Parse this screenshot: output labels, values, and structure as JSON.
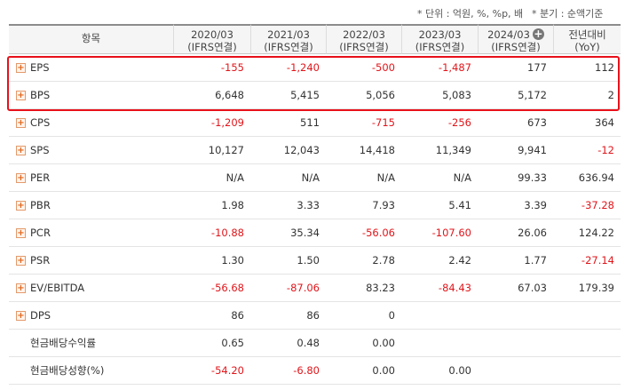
{
  "notes": [
    "* 단위 : 억원, %, %p, 배",
    "* 분기 : 순액기준"
  ],
  "table": {
    "corner": "항목",
    "columns": [
      {
        "period": "2020/03",
        "basis": "(IFRS연결)"
      },
      {
        "period": "2021/03",
        "basis": "(IFRS연결)"
      },
      {
        "period": "2022/03",
        "basis": "(IFRS연결)"
      },
      {
        "period": "2023/03",
        "basis": "(IFRS연결)"
      },
      {
        "period": "2024/03",
        "basis": "(IFRS연결)",
        "expandable": true
      },
      {
        "period": "전년대비",
        "basis": "(YoY)"
      }
    ],
    "rows": [
      {
        "label": "EPS",
        "expandable": true,
        "cells": [
          "-155",
          "-1,240",
          "-500",
          "-1,487",
          "177",
          "112"
        ]
      },
      {
        "label": "BPS",
        "expandable": true,
        "cells": [
          "6,648",
          "5,415",
          "5,056",
          "5,083",
          "5,172",
          "2"
        ]
      },
      {
        "label": "CPS",
        "expandable": true,
        "cells": [
          "-1,209",
          "511",
          "-715",
          "-256",
          "673",
          "364"
        ]
      },
      {
        "label": "SPS",
        "expandable": true,
        "cells": [
          "10,127",
          "12,043",
          "14,418",
          "11,349",
          "9,941",
          "-12"
        ]
      },
      {
        "label": "PER",
        "expandable": true,
        "cells": [
          "N/A",
          "N/A",
          "N/A",
          "N/A",
          "99.33",
          "636.94"
        ]
      },
      {
        "label": "PBR",
        "expandable": true,
        "cells": [
          "1.98",
          "3.33",
          "7.93",
          "5.41",
          "3.39",
          "-37.28"
        ]
      },
      {
        "label": "PCR",
        "expandable": true,
        "cells": [
          "-10.88",
          "35.34",
          "-56.06",
          "-107.60",
          "26.06",
          "124.22"
        ]
      },
      {
        "label": "PSR",
        "expandable": true,
        "cells": [
          "1.30",
          "1.50",
          "2.78",
          "2.42",
          "1.77",
          "-27.14"
        ]
      },
      {
        "label": "EV/EBITDA",
        "expandable": true,
        "cells": [
          "-56.68",
          "-87.06",
          "83.23",
          "-84.43",
          "67.03",
          "179.39"
        ]
      },
      {
        "label": "DPS",
        "expandable": true,
        "cells": [
          "86",
          "86",
          "0",
          null,
          null,
          null
        ]
      },
      {
        "label": "현금배당수익률",
        "expandable": false,
        "cells": [
          "0.65",
          "0.48",
          "0.00",
          null,
          null,
          null
        ]
      },
      {
        "label": "현금배당성향(%)",
        "expandable": false,
        "cells": [
          "-54.20",
          "-6.80",
          "0.00",
          "0.00",
          null,
          null
        ]
      }
    ],
    "highlighted_rows": [
      0,
      1
    ]
  }
}
